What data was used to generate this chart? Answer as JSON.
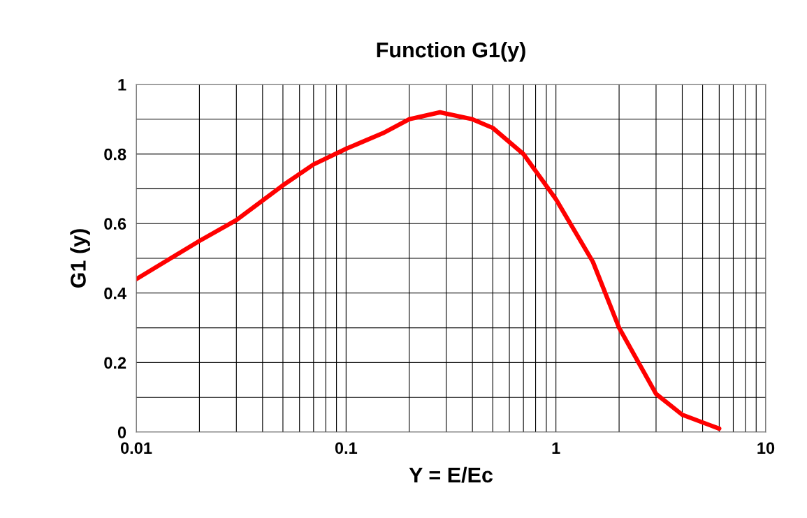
{
  "chart_data": {
    "type": "line",
    "title": "Function G1(y)",
    "xlabel": "Y = E/Ec",
    "ylabel": "G1 (y)",
    "log": "x",
    "grid": true,
    "marker": "none",
    "line_style": "solid",
    "xlim": [
      0.01,
      10
    ],
    "ylim": [
      0,
      1
    ],
    "xticks": [
      0.01,
      {
        "value": 0.02,
        "label": null
      },
      {
        "value": 0.03,
        "label": null
      },
      {
        "value": 0.04,
        "label": null
      },
      {
        "value": 0.05,
        "label": null
      },
      {
        "value": 0.06,
        "label": null
      },
      {
        "value": 0.07,
        "label": null
      },
      {
        "value": 0.08,
        "label": null
      },
      {
        "value": 0.09,
        "label": null
      },
      0.1,
      {
        "value": 0.2,
        "label": null
      },
      {
        "value": 0.3,
        "label": null
      },
      {
        "value": 0.4,
        "label": null
      },
      {
        "value": 0.5,
        "label": null
      },
      {
        "value": 0.6,
        "label": null
      },
      {
        "value": 0.7,
        "label": null
      },
      {
        "value": 0.8,
        "label": null
      },
      {
        "value": 0.9,
        "label": null
      },
      1,
      {
        "value": 2,
        "label": null
      },
      {
        "value": 3,
        "label": null
      },
      {
        "value": 4,
        "label": null
      },
      {
        "value": 5,
        "label": null
      },
      {
        "value": 6,
        "label": null
      },
      {
        "value": 7,
        "label": null
      },
      {
        "value": 8,
        "label": null
      },
      {
        "value": 9,
        "label": null
      },
      10
    ],
    "yticks": [
      0,
      {
        "value": 0.1,
        "label": null
      },
      0.2,
      {
        "value": 0.3,
        "label": null
      },
      0.4,
      {
        "value": 0.5,
        "label": null
      },
      0.6,
      {
        "value": 0.7,
        "label": null
      },
      0.8,
      {
        "value": 0.9,
        "label": null
      },
      1
    ],
    "series": [
      {
        "color": "#ff0000",
        "x": [
          0.01,
          0.02,
          0.03,
          0.05,
          0.07,
          0.1,
          0.15,
          0.2,
          0.28,
          0.4,
          0.5,
          0.7,
          1,
          1.5,
          2,
          3,
          4,
          6
        ],
        "values": [
          0.44,
          0.55,
          0.61,
          0.71,
          0.77,
          0.815,
          0.86,
          0.9,
          0.92,
          0.9,
          0.875,
          0.8,
          0.67,
          0.49,
          0.3,
          0.11,
          0.05,
          0.01
        ]
      }
    ]
  }
}
